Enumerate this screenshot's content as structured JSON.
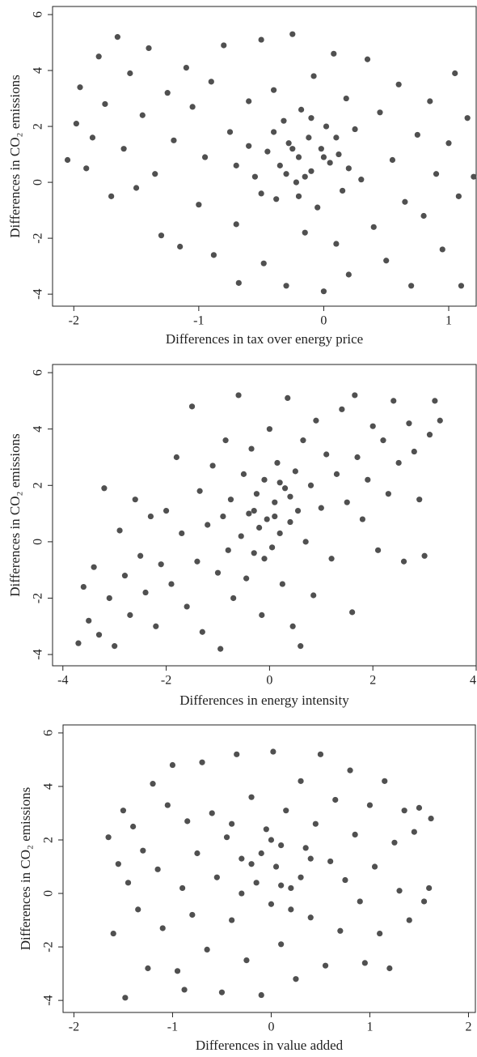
{
  "chart_data": [
    {
      "type": "scatter",
      "xlabel": "Differences in tax over energy price",
      "ylabel": "Differences in CO₂ emissions",
      "color": "#505050",
      "xlim": [
        -2.17,
        1.22
      ],
      "ylim": [
        -4.43,
        6.29
      ],
      "xticks": [
        -2,
        -1,
        0,
        1
      ],
      "yticks": [
        -4,
        -2,
        0,
        2,
        4,
        6
      ],
      "x": [
        -2.05,
        -1.98,
        -1.95,
        -1.9,
        -1.85,
        -1.8,
        -1.75,
        -1.7,
        -1.65,
        -1.6,
        -1.55,
        -1.5,
        -1.45,
        -1.4,
        -1.35,
        -1.3,
        -1.25,
        -1.2,
        -1.15,
        -1.1,
        -1.05,
        -1.0,
        -0.95,
        -0.9,
        -0.88,
        -0.8,
        -0.75,
        -0.7,
        -0.68,
        -0.6,
        -0.55,
        -0.5,
        -0.48,
        -0.45,
        -0.4,
        -0.38,
        -0.35,
        -0.32,
        -0.3,
        -0.28,
        -0.25,
        -0.22,
        -0.2,
        -0.18,
        -0.15,
        -0.12,
        -0.1,
        -0.08,
        -0.05,
        -0.02,
        0.0,
        0.02,
        0.05,
        0.08,
        0.1,
        0.12,
        0.15,
        0.18,
        0.2,
        0.25,
        0.3,
        0.35,
        0.4,
        0.45,
        0.5,
        0.55,
        0.6,
        0.65,
        0.7,
        0.75,
        0.8,
        0.85,
        0.9,
        0.95,
        1.0,
        1.05,
        1.08,
        1.1,
        1.15,
        1.2,
        -0.6,
        -0.5,
        -0.4,
        -0.3,
        -0.2,
        -0.1,
        0.0,
        0.1,
        0.2,
        -0.7,
        -0.25,
        -0.15
      ],
      "values": [
        0.8,
        2.1,
        3.4,
        0.5,
        1.6,
        4.5,
        2.8,
        -0.5,
        5.2,
        1.2,
        3.9,
        -0.2,
        2.4,
        4.8,
        0.3,
        -1.9,
        3.2,
        1.5,
        -2.3,
        4.1,
        2.7,
        -0.8,
        0.9,
        3.6,
        -2.6,
        4.9,
        1.8,
        -1.5,
        -3.6,
        2.9,
        0.2,
        5.1,
        -2.9,
        1.1,
        3.3,
        -0.6,
        0.6,
        2.2,
        -3.7,
        1.4,
        5.3,
        0.0,
        0.9,
        2.6,
        -1.8,
        1.6,
        0.4,
        3.8,
        -0.9,
        1.2,
        -3.9,
        2.0,
        0.7,
        4.6,
        -2.2,
        1.0,
        -0.3,
        3.0,
        -3.3,
        1.9,
        0.1,
        4.4,
        -1.6,
        2.5,
        -2.8,
        0.8,
        3.5,
        -0.7,
        -3.7,
        1.7,
        -1.2,
        2.9,
        0.3,
        -2.4,
        1.4,
        3.9,
        -0.5,
        -3.7,
        2.3,
        0.2,
        1.3,
        -0.4,
        1.8,
        0.3,
        -0.5,
        2.3,
        0.9,
        1.6,
        0.5,
        0.6,
        1.2,
        0.2
      ]
    },
    {
      "type": "scatter",
      "xlabel": "Differences in energy intensity",
      "ylabel": "Differences in CO₂ emissions",
      "color": "#505050",
      "xlim": [
        -4.2,
        4.0
      ],
      "ylim": [
        -4.4,
        6.29
      ],
      "xticks": [
        -4,
        -2,
        0,
        2,
        4
      ],
      "yticks": [
        -4,
        -2,
        0,
        2,
        4,
        6
      ],
      "x": [
        -3.7,
        -3.6,
        -3.5,
        -3.4,
        -3.3,
        -3.2,
        -3.1,
        -3.0,
        -2.9,
        -2.8,
        -2.7,
        -2.6,
        -2.5,
        -2.4,
        -2.3,
        -2.2,
        -2.1,
        -2.0,
        -1.9,
        -1.8,
        -1.7,
        -1.6,
        -1.5,
        -1.4,
        -1.35,
        -1.3,
        -1.2,
        -1.1,
        -1.0,
        -0.95,
        -0.9,
        -0.85,
        -0.8,
        -0.75,
        -0.7,
        -0.6,
        -0.55,
        -0.5,
        -0.45,
        -0.4,
        -0.35,
        -0.3,
        -0.25,
        -0.2,
        -0.15,
        -0.1,
        -0.05,
        0.0,
        0.05,
        0.1,
        0.15,
        0.2,
        0.25,
        0.3,
        0.35,
        0.4,
        0.45,
        0.5,
        0.55,
        0.6,
        0.65,
        0.7,
        0.8,
        0.85,
        0.9,
        1.0,
        1.1,
        1.2,
        1.3,
        1.4,
        1.5,
        1.6,
        1.65,
        1.7,
        1.8,
        1.9,
        2.0,
        2.1,
        2.2,
        2.3,
        2.4,
        2.5,
        2.6,
        2.7,
        2.8,
        2.9,
        3.0,
        3.1,
        3.2,
        3.3,
        0.1,
        -0.3,
        0.4,
        -0.1,
        0.2
      ],
      "values": [
        -3.6,
        -1.6,
        -2.8,
        -0.9,
        -3.3,
        1.9,
        -2.0,
        -3.7,
        0.4,
        -1.2,
        -2.6,
        1.5,
        -0.5,
        -1.8,
        0.9,
        -3.0,
        -0.8,
        1.1,
        -1.5,
        3.0,
        0.3,
        -2.3,
        4.8,
        -0.7,
        1.8,
        -3.2,
        0.6,
        2.7,
        -1.1,
        -3.8,
        0.9,
        3.6,
        -0.3,
        1.5,
        -2.0,
        5.2,
        0.2,
        2.4,
        -1.3,
        1.0,
        3.3,
        -0.4,
        1.7,
        0.5,
        -2.6,
        2.2,
        0.8,
        4.0,
        -0.2,
        1.4,
        2.8,
        0.3,
        -1.5,
        1.9,
        5.1,
        0.7,
        -3.0,
        2.5,
        1.1,
        -3.7,
        3.6,
        0.0,
        2.0,
        -1.9,
        4.3,
        1.2,
        3.1,
        -0.6,
        2.4,
        4.7,
        1.4,
        -2.5,
        5.2,
        3.0,
        0.8,
        2.2,
        4.1,
        -0.3,
        3.6,
        1.7,
        5.0,
        2.8,
        -0.7,
        4.2,
        3.2,
        1.5,
        -0.5,
        3.8,
        5.0,
        4.3,
        0.9,
        1.1,
        1.6,
        -0.6,
        2.1
      ]
    },
    {
      "type": "scatter",
      "xlabel": "Differences in value added",
      "ylabel": "Differences in CO₂ emissions",
      "color": "#505050",
      "xlim": [
        -2.11,
        2.07
      ],
      "ylim": [
        -4.45,
        6.3
      ],
      "xticks": [
        -2,
        -1,
        0,
        1,
        2
      ],
      "yticks": [
        -4,
        -2,
        0,
        2,
        4,
        6
      ],
      "x": [
        -1.65,
        -1.6,
        -1.55,
        -1.5,
        -1.48,
        -1.45,
        -1.4,
        -1.35,
        -1.3,
        -1.25,
        -1.2,
        -1.15,
        -1.1,
        -1.05,
        -1.0,
        -0.95,
        -0.9,
        -0.88,
        -0.85,
        -0.8,
        -0.75,
        -0.7,
        -0.65,
        -0.6,
        -0.55,
        -0.5,
        -0.45,
        -0.4,
        -0.35,
        -0.3,
        -0.25,
        -0.2,
        -0.15,
        -0.1,
        -0.05,
        0.0,
        0.02,
        0.05,
        0.1,
        0.15,
        0.2,
        0.25,
        0.3,
        0.35,
        0.4,
        0.45,
        0.5,
        0.55,
        0.6,
        0.65,
        0.7,
        0.75,
        0.8,
        0.85,
        0.9,
        0.95,
        1.0,
        1.05,
        1.1,
        1.15,
        1.2,
        1.25,
        1.3,
        1.35,
        1.4,
        1.45,
        1.5,
        1.55,
        1.6,
        1.62,
        -0.2,
        0.1,
        0.3,
        -0.3,
        0.0,
        0.2,
        -0.1,
        0.4,
        -0.4,
        0.1
      ],
      "values": [
        2.1,
        -1.5,
        1.1,
        3.1,
        -3.9,
        0.4,
        2.5,
        -0.6,
        1.6,
        -2.8,
        4.1,
        0.9,
        -1.3,
        3.3,
        4.8,
        -2.9,
        0.2,
        -3.6,
        2.7,
        -0.8,
        1.5,
        4.9,
        -2.1,
        3.0,
        0.6,
        -3.7,
        2.1,
        -1.0,
        5.2,
        1.3,
        -2.5,
        3.6,
        0.4,
        -3.8,
        2.4,
        -0.4,
        5.3,
        1.0,
        -1.9,
        3.1,
        0.2,
        -3.2,
        4.2,
        1.7,
        -0.9,
        2.6,
        5.2,
        -2.7,
        1.2,
        3.5,
        -1.4,
        0.5,
        4.6,
        2.2,
        -0.3,
        -2.6,
        3.3,
        1.0,
        -1.5,
        4.2,
        -2.8,
        1.9,
        0.1,
        3.1,
        -1.0,
        2.3,
        3.2,
        -0.3,
        0.2,
        2.8,
        1.1,
        1.8,
        0.6,
        0.0,
        2.0,
        -0.6,
        1.5,
        1.3,
        2.6,
        0.3
      ]
    }
  ]
}
